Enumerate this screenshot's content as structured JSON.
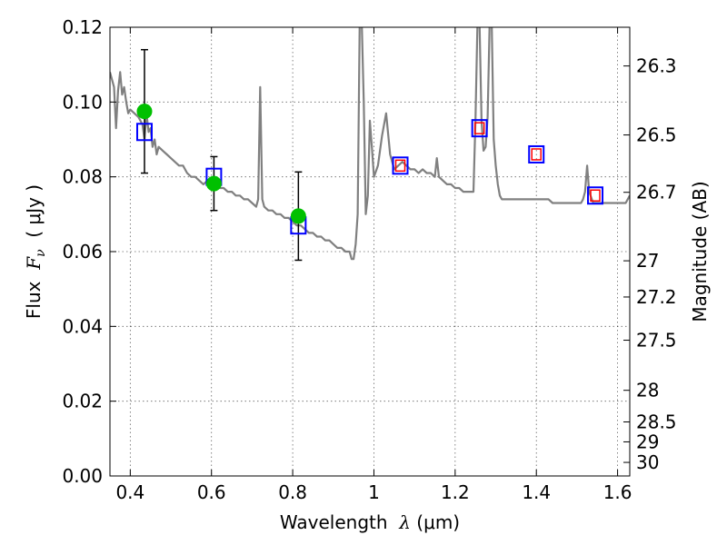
{
  "chart_data": {
    "type": "scatter",
    "xlabel": {
      "prefix": "Wavelength  ",
      "symbol": "λ",
      "unit": " (μm)"
    },
    "ylabel": {
      "prefix": "Flux  ",
      "symbol": "F",
      "sub": "ν",
      "unit": "  ( μJy )"
    },
    "y2label": "Magnitude (AB)",
    "xlim": [
      0.35,
      1.63
    ],
    "ylim": [
      0.0,
      0.12
    ],
    "xticks": [
      0.4,
      0.6,
      0.8,
      1.0,
      1.2,
      1.4,
      1.6
    ],
    "xtick_labels": [
      "0.4",
      "0.6",
      "0.8",
      "1",
      "1.2",
      "1.4",
      "1.6"
    ],
    "yticks": [
      0.0,
      0.02,
      0.04,
      0.06,
      0.08,
      0.1,
      0.12
    ],
    "ytick_labels": [
      "0.00",
      "0.02",
      "0.04",
      "0.06",
      "0.08",
      "0.10",
      "0.12"
    ],
    "y2_ticks": [
      {
        "label": "26.3",
        "mag": 26.3
      },
      {
        "label": "26.5",
        "mag": 26.5
      },
      {
        "label": "26.7",
        "mag": 26.7
      },
      {
        "label": "27",
        "mag": 27.0
      },
      {
        "label": "27.2",
        "mag": 27.2
      },
      {
        "label": "27.5",
        "mag": 27.5
      },
      {
        "label": "28",
        "mag": 28.0
      },
      {
        "label": "28.5",
        "mag": 28.5
      },
      {
        "label": "29",
        "mag": 29.0
      },
      {
        "label": "30",
        "mag": 30.0
      }
    ],
    "grid": true,
    "colors": {
      "model": "#808080",
      "observed": "#00c000",
      "model_box": "#0000ff",
      "synthetic_box": "#ff0000",
      "errorbar": "#000000"
    },
    "series": [
      {
        "kind": "line",
        "role": "model spectrum",
        "x": [
          0.35,
          0.36,
          0.365,
          0.37,
          0.375,
          0.38,
          0.385,
          0.39,
          0.395,
          0.4,
          0.41,
          0.42,
          0.43,
          0.435,
          0.44,
          0.445,
          0.45,
          0.455,
          0.46,
          0.465,
          0.47,
          0.48,
          0.49,
          0.5,
          0.51,
          0.52,
          0.53,
          0.54,
          0.55,
          0.56,
          0.57,
          0.58,
          0.59,
          0.6,
          0.61,
          0.62,
          0.63,
          0.64,
          0.65,
          0.66,
          0.67,
          0.68,
          0.69,
          0.7,
          0.71,
          0.715,
          0.72,
          0.725,
          0.73,
          0.74,
          0.75,
          0.76,
          0.77,
          0.78,
          0.79,
          0.8,
          0.81,
          0.82,
          0.83,
          0.84,
          0.85,
          0.86,
          0.87,
          0.88,
          0.89,
          0.9,
          0.91,
          0.92,
          0.93,
          0.94,
          0.945,
          0.95,
          0.955,
          0.96,
          0.965,
          0.97,
          0.975,
          0.98,
          0.985,
          0.99,
          0.995,
          1.0,
          1.01,
          1.02,
          1.03,
          1.04,
          1.05,
          1.06,
          1.07,
          1.08,
          1.09,
          1.1,
          1.11,
          1.12,
          1.13,
          1.14,
          1.15,
          1.155,
          1.16,
          1.17,
          1.18,
          1.19,
          1.2,
          1.21,
          1.22,
          1.23,
          1.24,
          1.245,
          1.25,
          1.255,
          1.26,
          1.265,
          1.27,
          1.275,
          1.28,
          1.285,
          1.29,
          1.295,
          1.3,
          1.305,
          1.31,
          1.315,
          1.32,
          1.33,
          1.34,
          1.35,
          1.36,
          1.37,
          1.38,
          1.39,
          1.4,
          1.41,
          1.42,
          1.43,
          1.44,
          1.45,
          1.46,
          1.47,
          1.48,
          1.49,
          1.5,
          1.51,
          1.515,
          1.52,
          1.525,
          1.53,
          1.54,
          1.55,
          1.56,
          1.57,
          1.58,
          1.59,
          1.6,
          1.61,
          1.62,
          1.63
        ],
        "y": [
          0.108,
          0.104,
          0.093,
          0.103,
          0.108,
          0.102,
          0.104,
          0.1,
          0.097,
          0.098,
          0.097,
          0.096,
          0.094,
          0.09,
          0.097,
          0.092,
          0.093,
          0.088,
          0.09,
          0.086,
          0.088,
          0.087,
          0.086,
          0.085,
          0.084,
          0.083,
          0.083,
          0.081,
          0.08,
          0.08,
          0.079,
          0.078,
          0.079,
          0.078,
          0.078,
          0.077,
          0.077,
          0.076,
          0.076,
          0.075,
          0.075,
          0.074,
          0.074,
          0.073,
          0.072,
          0.074,
          0.104,
          0.074,
          0.072,
          0.071,
          0.071,
          0.07,
          0.07,
          0.069,
          0.069,
          0.068,
          0.067,
          0.067,
          0.066,
          0.065,
          0.065,
          0.064,
          0.064,
          0.063,
          0.063,
          0.062,
          0.061,
          0.061,
          0.06,
          0.06,
          0.058,
          0.058,
          0.062,
          0.07,
          0.121,
          0.121,
          0.1,
          0.07,
          0.075,
          0.095,
          0.088,
          0.08,
          0.083,
          0.091,
          0.097,
          0.086,
          0.082,
          0.083,
          0.084,
          0.083,
          0.082,
          0.082,
          0.081,
          0.082,
          0.081,
          0.081,
          0.08,
          0.085,
          0.08,
          0.079,
          0.078,
          0.078,
          0.077,
          0.077,
          0.076,
          0.076,
          0.076,
          0.076,
          0.095,
          0.121,
          0.121,
          0.095,
          0.087,
          0.088,
          0.096,
          0.121,
          0.121,
          0.09,
          0.083,
          0.078,
          0.075,
          0.074,
          0.074,
          0.074,
          0.074,
          0.074,
          0.074,
          0.074,
          0.074,
          0.074,
          0.074,
          0.074,
          0.074,
          0.074,
          0.073,
          0.073,
          0.073,
          0.073,
          0.073,
          0.073,
          0.073,
          0.073,
          0.074,
          0.076,
          0.083,
          0.076,
          0.073,
          0.073,
          0.073,
          0.073,
          0.073,
          0.073,
          0.073,
          0.073,
          0.073,
          0.075
        ]
      },
      {
        "kind": "points",
        "role": "observed photometry",
        "marker": "filled circle",
        "x": [
          0.435,
          0.606,
          0.814
        ],
        "y": [
          0.0975,
          0.0782,
          0.0695
        ],
        "yerr": [
          0.0165,
          0.0072,
          0.0118
        ]
      },
      {
        "kind": "points",
        "role": "model photometry",
        "marker": "open square",
        "x": [
          0.435,
          0.606,
          0.814,
          1.065,
          1.26,
          1.4,
          1.545
        ],
        "y": [
          0.092,
          0.08,
          0.067,
          0.083,
          0.093,
          0.086,
          0.075
        ]
      },
      {
        "kind": "points",
        "role": "synthetic photometry",
        "marker": "small open square",
        "x": [
          1.065,
          1.26,
          1.4,
          1.545
        ],
        "y": [
          0.083,
          0.093,
          0.086,
          0.075
        ]
      }
    ]
  }
}
